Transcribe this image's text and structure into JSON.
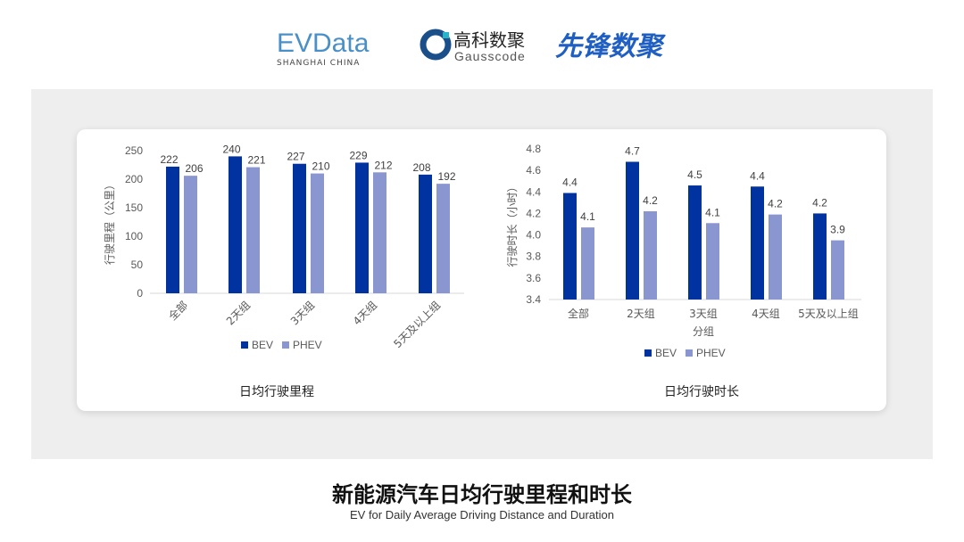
{
  "logos": {
    "evdata": "EVData",
    "evdata_sub": "SHANGHAI CHINA",
    "gauss_cn": "高科数聚",
    "gauss_en": "Gausscode",
    "xianfeng": "先锋数聚"
  },
  "footer": {
    "title": "新能源汽车日均行驶里程和时长",
    "subtitle": "EV for Daily Average Driving Distance and Duration"
  },
  "colors": {
    "BEV": "#0033a0",
    "PHEV": "#8a96cf"
  },
  "chart_data": [
    {
      "type": "bar",
      "title": "日均行驶里程",
      "xlabel": "",
      "ylabel": "行驶里程（公里）",
      "categories": [
        "全部",
        "2天组",
        "3天组",
        "4天组",
        "5天及以上组"
      ],
      "ylim": [
        0,
        250
      ],
      "yticks": [
        "0",
        "50",
        "100",
        "150",
        "200",
        "250"
      ],
      "grid": false,
      "legend": "bottom",
      "series": [
        {
          "name": "BEV",
          "values": [
            222,
            240,
            227,
            229,
            208
          ],
          "labels": [
            "222",
            "240",
            "227",
            "229",
            "208"
          ]
        },
        {
          "name": "PHEV",
          "values": [
            206,
            221,
            210,
            212,
            192
          ],
          "labels": [
            "206",
            "221",
            "210",
            "212",
            "192"
          ]
        }
      ]
    },
    {
      "type": "bar",
      "title": "日均行驶时长",
      "xlabel": "分组",
      "ylabel": "行驶时长（小时）",
      "categories": [
        "全部",
        "2天组",
        "3天组",
        "4天组",
        "5天及以上组"
      ],
      "ylim": [
        3.4,
        4.8
      ],
      "yticks": [
        "3.4",
        "3.6",
        "3.8",
        "4.0",
        "4.2",
        "4.4",
        "4.6",
        "4.8"
      ],
      "grid": false,
      "legend": "bottom",
      "series": [
        {
          "name": "BEV",
          "values": [
            4.39,
            4.68,
            4.46,
            4.45,
            4.2
          ],
          "labels": [
            "4.4",
            "4.7",
            "4.5",
            "4.4",
            "4.2"
          ]
        },
        {
          "name": "PHEV",
          "values": [
            4.07,
            4.22,
            4.11,
            4.19,
            3.95
          ],
          "labels": [
            "4.1",
            "4.2",
            "4.1",
            "4.2",
            "3.9"
          ]
        }
      ]
    }
  ]
}
